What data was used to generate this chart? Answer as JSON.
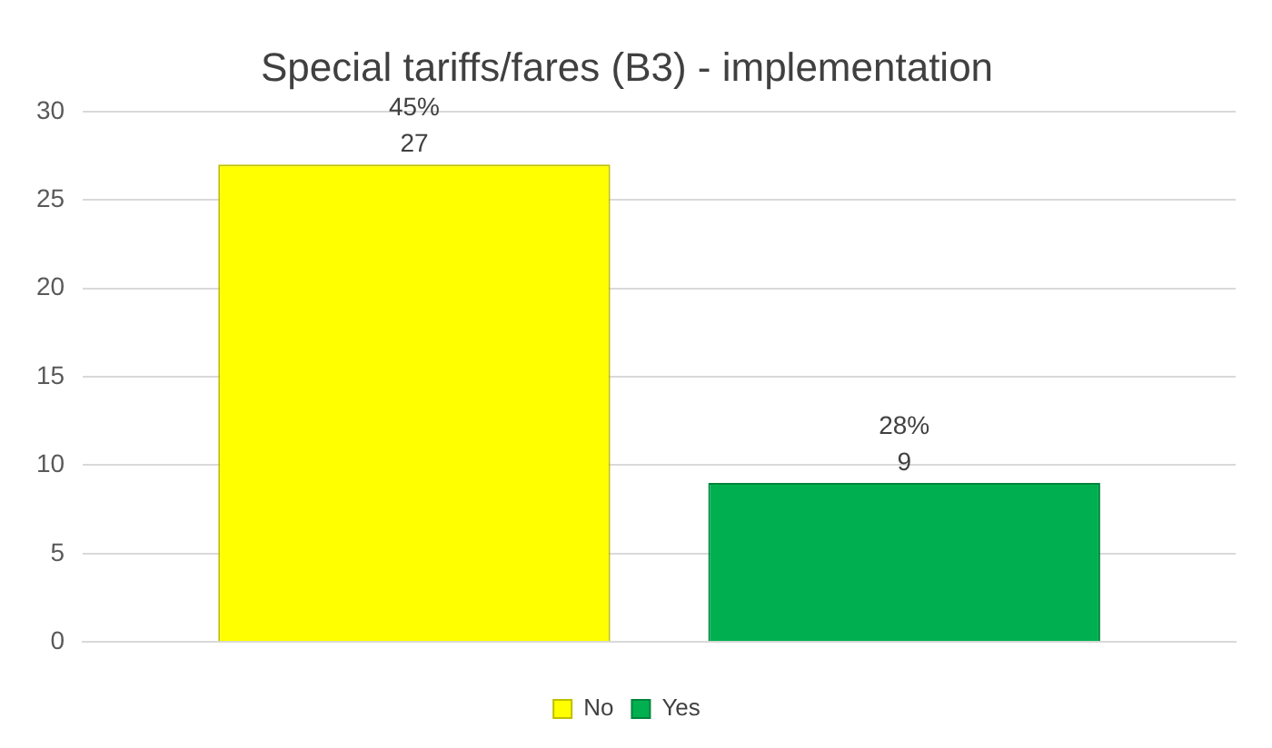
{
  "chart_data": {
    "type": "bar",
    "title": "Special tariffs/fares (B3) - implementation",
    "categories": [
      null
    ],
    "series": [
      {
        "name": "No",
        "color": "#ffff00",
        "values": [
          27
        ],
        "value_labels": [
          "45%\n27"
        ]
      },
      {
        "name": "Yes",
        "color": "#00b050",
        "values": [
          9
        ],
        "value_labels": [
          "28%\n9"
        ]
      }
    ],
    "ylim": [
      0,
      30
    ],
    "yticks": [
      0,
      5,
      10,
      15,
      20,
      25,
      30
    ],
    "grid": "y",
    "legend": "bottom"
  }
}
